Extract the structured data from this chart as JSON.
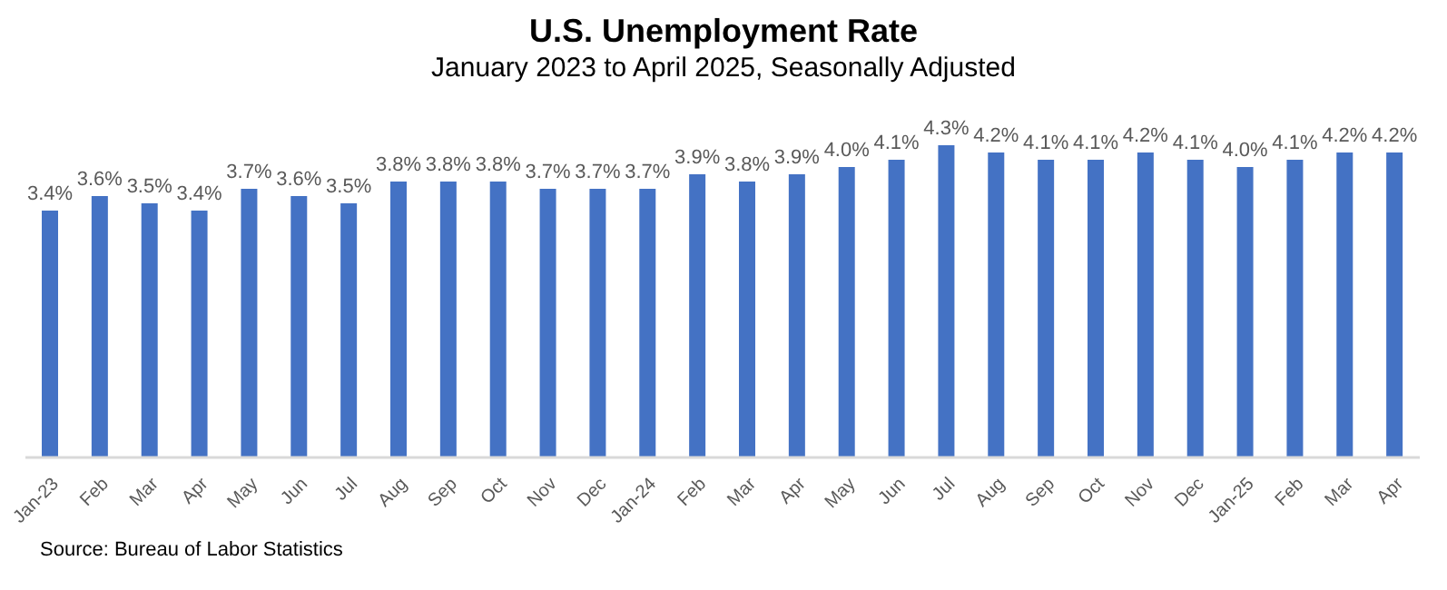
{
  "chart_data": {
    "type": "bar",
    "title": "U.S. Unemployment Rate",
    "subtitle": "January 2023 to April 2025, Seasonally Adjusted",
    "categories": [
      "Jan-23",
      "Feb",
      "Mar",
      "Apr",
      "May",
      "Jun",
      "Jul",
      "Aug",
      "Sep",
      "Oct",
      "Nov",
      "Dec",
      "Jan-24",
      "Feb",
      "Mar",
      "Apr",
      "May",
      "Jun",
      "Jul",
      "Aug",
      "Sep",
      "Oct",
      "Nov",
      "Dec",
      "Jan-25",
      "Feb",
      "Mar",
      "Apr"
    ],
    "values": [
      3.4,
      3.6,
      3.5,
      3.4,
      3.7,
      3.6,
      3.5,
      3.8,
      3.8,
      3.8,
      3.7,
      3.7,
      3.7,
      3.9,
      3.8,
      3.9,
      4.0,
      4.1,
      4.3,
      4.2,
      4.1,
      4.1,
      4.2,
      4.1,
      4.0,
      4.1,
      4.2,
      4.2
    ],
    "value_labels": [
      "3.4%",
      "3.6%",
      "3.5%",
      "3.4%",
      "3.7%",
      "3.6%",
      "3.5%",
      "3.8%",
      "3.8%",
      "3.8%",
      "3.7%",
      "3.7%",
      "3.7%",
      "3.9%",
      "3.8%",
      "3.9%",
      "4.0%",
      "4.1%",
      "4.3%",
      "4.2%",
      "4.1%",
      "4.1%",
      "4.2%",
      "4.1%",
      "4.0%",
      "4.1%",
      "4.2%",
      "4.2%"
    ],
    "color": "#4472c4",
    "annotations": [
      "Source: Bureau of Labor Statistics"
    ]
  }
}
